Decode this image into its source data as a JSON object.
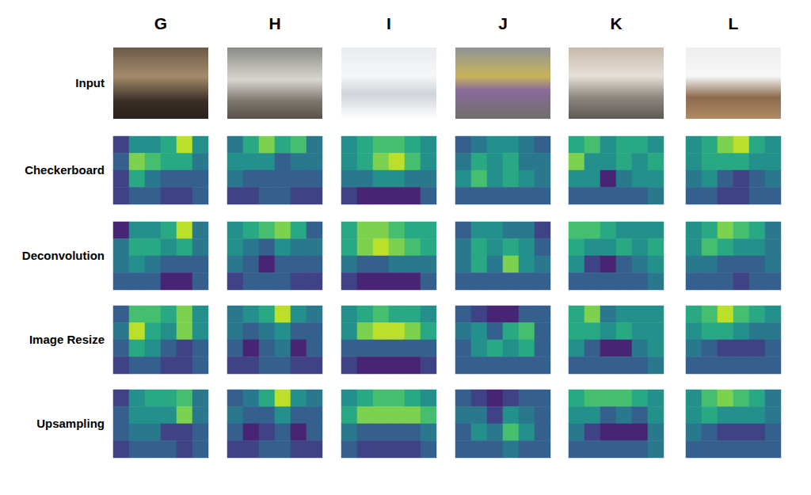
{
  "columns": [
    "G",
    "H",
    "I",
    "J",
    "K",
    "L"
  ],
  "input_label": "Input",
  "chart_data": {
    "type": "heatmap",
    "color_range": [
      0,
      1
    ],
    "tick_labels": false,
    "rows": [
      "Checkerboard",
      "Deconvolution",
      "Image Resize",
      "Upsampling"
    ],
    "cells": [
      [
        [
          [
            0.2,
            0.5,
            0.5,
            0.6,
            0.9,
            0.5
          ],
          [
            0.3,
            0.8,
            0.7,
            0.6,
            0.6,
            0.4
          ],
          [
            0.2,
            0.6,
            0.4,
            0.3,
            0.3,
            0.3
          ],
          [
            0.2,
            0.3,
            0.3,
            0.2,
            0.2,
            0.3
          ]
        ],
        [
          [
            0.4,
            0.6,
            0.8,
            0.6,
            0.7,
            0.4
          ],
          [
            0.5,
            0.5,
            0.5,
            0.3,
            0.4,
            0.4
          ],
          [
            0.4,
            0.3,
            0.3,
            0.3,
            0.3,
            0.3
          ],
          [
            0.2,
            0.2,
            0.3,
            0.3,
            0.2,
            0.2
          ]
        ],
        [
          [
            0.5,
            0.6,
            0.7,
            0.7,
            0.6,
            0.5
          ],
          [
            0.5,
            0.6,
            0.8,
            0.9,
            0.7,
            0.5
          ],
          [
            0.4,
            0.4,
            0.5,
            0.5,
            0.4,
            0.4
          ],
          [
            0.2,
            0.1,
            0.1,
            0.1,
            0.1,
            0.3
          ]
        ],
        [
          [
            0.3,
            0.4,
            0.5,
            0.5,
            0.4,
            0.3
          ],
          [
            0.4,
            0.6,
            0.5,
            0.6,
            0.4,
            0.4
          ],
          [
            0.5,
            0.7,
            0.5,
            0.6,
            0.5,
            0.4
          ],
          [
            0.3,
            0.3,
            0.3,
            0.3,
            0.3,
            0.3
          ]
        ],
        [
          [
            0.6,
            0.7,
            0.5,
            0.6,
            0.6,
            0.5
          ],
          [
            0.8,
            0.5,
            0.5,
            0.6,
            0.5,
            0.6
          ],
          [
            0.5,
            0.5,
            0.1,
            0.4,
            0.5,
            0.5
          ],
          [
            0.3,
            0.3,
            0.3,
            0.3,
            0.3,
            0.4
          ]
        ],
        [
          [
            0.5,
            0.6,
            0.8,
            0.9,
            0.6,
            0.5
          ],
          [
            0.5,
            0.6,
            0.6,
            0.6,
            0.5,
            0.5
          ],
          [
            0.4,
            0.5,
            0.3,
            0.2,
            0.3,
            0.4
          ],
          [
            0.3,
            0.3,
            0.2,
            0.2,
            0.3,
            0.3
          ]
        ]
      ],
      [
        [
          [
            0.1,
            0.5,
            0.5,
            0.6,
            0.9,
            0.4
          ],
          [
            0.4,
            0.6,
            0.6,
            0.5,
            0.6,
            0.4
          ],
          [
            0.4,
            0.5,
            0.4,
            0.3,
            0.3,
            0.3
          ],
          [
            0.3,
            0.3,
            0.3,
            0.1,
            0.1,
            0.3
          ]
        ],
        [
          [
            0.5,
            0.6,
            0.7,
            0.8,
            0.6,
            0.3
          ],
          [
            0.5,
            0.4,
            0.3,
            0.5,
            0.4,
            0.4
          ],
          [
            0.4,
            0.3,
            0.1,
            0.3,
            0.3,
            0.3
          ],
          [
            0.2,
            0.3,
            0.3,
            0.3,
            0.2,
            0.2
          ]
        ],
        [
          [
            0.6,
            0.8,
            0.8,
            0.7,
            0.6,
            0.6
          ],
          [
            0.6,
            0.8,
            0.9,
            0.8,
            0.7,
            0.6
          ],
          [
            0.4,
            0.3,
            0.3,
            0.4,
            0.4,
            0.4
          ],
          [
            0.2,
            0.1,
            0.1,
            0.1,
            0.1,
            0.3
          ]
        ],
        [
          [
            0.3,
            0.5,
            0.5,
            0.4,
            0.4,
            0.2
          ],
          [
            0.4,
            0.6,
            0.5,
            0.6,
            0.5,
            0.3
          ],
          [
            0.4,
            0.6,
            0.4,
            0.8,
            0.5,
            0.4
          ],
          [
            0.3,
            0.3,
            0.3,
            0.3,
            0.3,
            0.3
          ]
        ],
        [
          [
            0.7,
            0.7,
            0.6,
            0.5,
            0.5,
            0.5
          ],
          [
            0.6,
            0.5,
            0.5,
            0.6,
            0.5,
            0.6
          ],
          [
            0.5,
            0.2,
            0.1,
            0.3,
            0.4,
            0.5
          ],
          [
            0.3,
            0.3,
            0.3,
            0.3,
            0.3,
            0.4
          ]
        ],
        [
          [
            0.5,
            0.6,
            0.8,
            0.7,
            0.6,
            0.4
          ],
          [
            0.5,
            0.7,
            0.6,
            0.5,
            0.5,
            0.4
          ],
          [
            0.4,
            0.4,
            0.3,
            0.3,
            0.3,
            0.4
          ],
          [
            0.3,
            0.3,
            0.3,
            0.2,
            0.3,
            0.3
          ]
        ]
      ],
      [
        [
          [
            0.3,
            0.7,
            0.7,
            0.6,
            0.8,
            0.5
          ],
          [
            0.4,
            0.9,
            0.6,
            0.5,
            0.8,
            0.5
          ],
          [
            0.3,
            0.6,
            0.5,
            0.3,
            0.2,
            0.3
          ],
          [
            0.2,
            0.3,
            0.3,
            0.2,
            0.2,
            0.3
          ]
        ],
        [
          [
            0.4,
            0.5,
            0.6,
            0.9,
            0.5,
            0.4
          ],
          [
            0.4,
            0.3,
            0.4,
            0.5,
            0.3,
            0.3
          ],
          [
            0.3,
            0.1,
            0.3,
            0.4,
            0.1,
            0.3
          ],
          [
            0.2,
            0.2,
            0.3,
            0.3,
            0.2,
            0.2
          ]
        ],
        [
          [
            0.5,
            0.6,
            0.7,
            0.6,
            0.6,
            0.5
          ],
          [
            0.5,
            0.8,
            0.9,
            0.9,
            0.8,
            0.6
          ],
          [
            0.3,
            0.3,
            0.3,
            0.3,
            0.3,
            0.3
          ],
          [
            0.2,
            0.1,
            0.1,
            0.1,
            0.1,
            0.2
          ]
        ],
        [
          [
            0.3,
            0.2,
            0.1,
            0.1,
            0.3,
            0.3
          ],
          [
            0.4,
            0.5,
            0.3,
            0.6,
            0.7,
            0.3
          ],
          [
            0.3,
            0.5,
            0.6,
            0.5,
            0.6,
            0.3
          ],
          [
            0.3,
            0.3,
            0.3,
            0.3,
            0.3,
            0.3
          ]
        ],
        [
          [
            0.6,
            0.8,
            0.4,
            0.5,
            0.5,
            0.5
          ],
          [
            0.6,
            0.6,
            0.5,
            0.6,
            0.5,
            0.5
          ],
          [
            0.5,
            0.3,
            0.1,
            0.1,
            0.4,
            0.5
          ],
          [
            0.3,
            0.3,
            0.3,
            0.3,
            0.3,
            0.4
          ]
        ],
        [
          [
            0.6,
            0.7,
            0.9,
            0.7,
            0.6,
            0.5
          ],
          [
            0.5,
            0.6,
            0.6,
            0.5,
            0.4,
            0.4
          ],
          [
            0.4,
            0.3,
            0.2,
            0.2,
            0.2,
            0.3
          ],
          [
            0.3,
            0.3,
            0.3,
            0.3,
            0.3,
            0.3
          ]
        ]
      ],
      [
        [
          [
            0.2,
            0.5,
            0.6,
            0.6,
            0.7,
            0.4
          ],
          [
            0.3,
            0.5,
            0.5,
            0.5,
            0.8,
            0.4
          ],
          [
            0.3,
            0.4,
            0.4,
            0.2,
            0.2,
            0.3
          ],
          [
            0.2,
            0.3,
            0.3,
            0.3,
            0.2,
            0.3
          ]
        ],
        [
          [
            0.3,
            0.4,
            0.6,
            0.9,
            0.5,
            0.4
          ],
          [
            0.4,
            0.3,
            0.3,
            0.5,
            0.3,
            0.3
          ],
          [
            0.3,
            0.1,
            0.2,
            0.3,
            0.1,
            0.3
          ],
          [
            0.2,
            0.2,
            0.3,
            0.3,
            0.2,
            0.2
          ]
        ],
        [
          [
            0.5,
            0.6,
            0.7,
            0.7,
            0.6,
            0.5
          ],
          [
            0.6,
            0.8,
            0.8,
            0.8,
            0.8,
            0.7
          ],
          [
            0.4,
            0.3,
            0.3,
            0.3,
            0.3,
            0.4
          ],
          [
            0.3,
            0.2,
            0.2,
            0.2,
            0.2,
            0.3
          ]
        ],
        [
          [
            0.3,
            0.2,
            0.1,
            0.2,
            0.3,
            0.3
          ],
          [
            0.4,
            0.4,
            0.2,
            0.5,
            0.4,
            0.3
          ],
          [
            0.3,
            0.5,
            0.4,
            0.7,
            0.5,
            0.3
          ],
          [
            0.3,
            0.3,
            0.3,
            0.4,
            0.3,
            0.3
          ]
        ],
        [
          [
            0.6,
            0.7,
            0.7,
            0.7,
            0.6,
            0.5
          ],
          [
            0.5,
            0.5,
            0.3,
            0.4,
            0.3,
            0.5
          ],
          [
            0.4,
            0.2,
            0.1,
            0.1,
            0.1,
            0.4
          ],
          [
            0.3,
            0.3,
            0.3,
            0.3,
            0.3,
            0.4
          ]
        ],
        [
          [
            0.5,
            0.7,
            0.8,
            0.7,
            0.6,
            0.4
          ],
          [
            0.5,
            0.6,
            0.5,
            0.5,
            0.5,
            0.4
          ],
          [
            0.4,
            0.3,
            0.2,
            0.2,
            0.2,
            0.3
          ],
          [
            0.3,
            0.3,
            0.3,
            0.3,
            0.3,
            0.3
          ]
        ]
      ]
    ]
  }
}
